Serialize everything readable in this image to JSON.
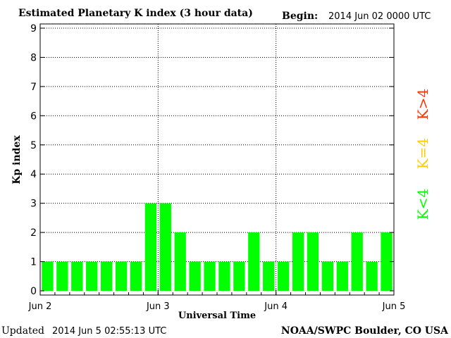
{
  "chart_data": {
    "type": "bar",
    "title": "Estimated Planetary K index (3 hour data)",
    "begin_label": "Begin:",
    "begin_value": "2014 Jun 02 0000 UTC",
    "xlabel": "Universal Time",
    "ylabel": "Kp index",
    "ylim": [
      0,
      9
    ],
    "yticks": [
      "0",
      "1",
      "2",
      "3",
      "4",
      "5",
      "6",
      "7",
      "8",
      "9"
    ],
    "xticks": [
      "Jun 2",
      "Jun 3",
      "Jun 4",
      "Jun 5"
    ],
    "grid": true,
    "bar_color": "#00ff00",
    "values": [
      1,
      1,
      1,
      1,
      1,
      1,
      1,
      3,
      3,
      2,
      1,
      1,
      1,
      1,
      2,
      1,
      1,
      2,
      2,
      1,
      1,
      2,
      1,
      2
    ],
    "legend": [
      {
        "text": "K<4",
        "color": "#00ff00"
      },
      {
        "text": "K=4",
        "color": "#ffcc00"
      },
      {
        "text": "K>4",
        "color": "#ff3300"
      }
    ]
  },
  "footer": {
    "updated_label": "Updated",
    "updated_value": "2014 Jun  5 02:55:13 UTC",
    "source": "NOAA/SWPC Boulder, CO USA"
  }
}
